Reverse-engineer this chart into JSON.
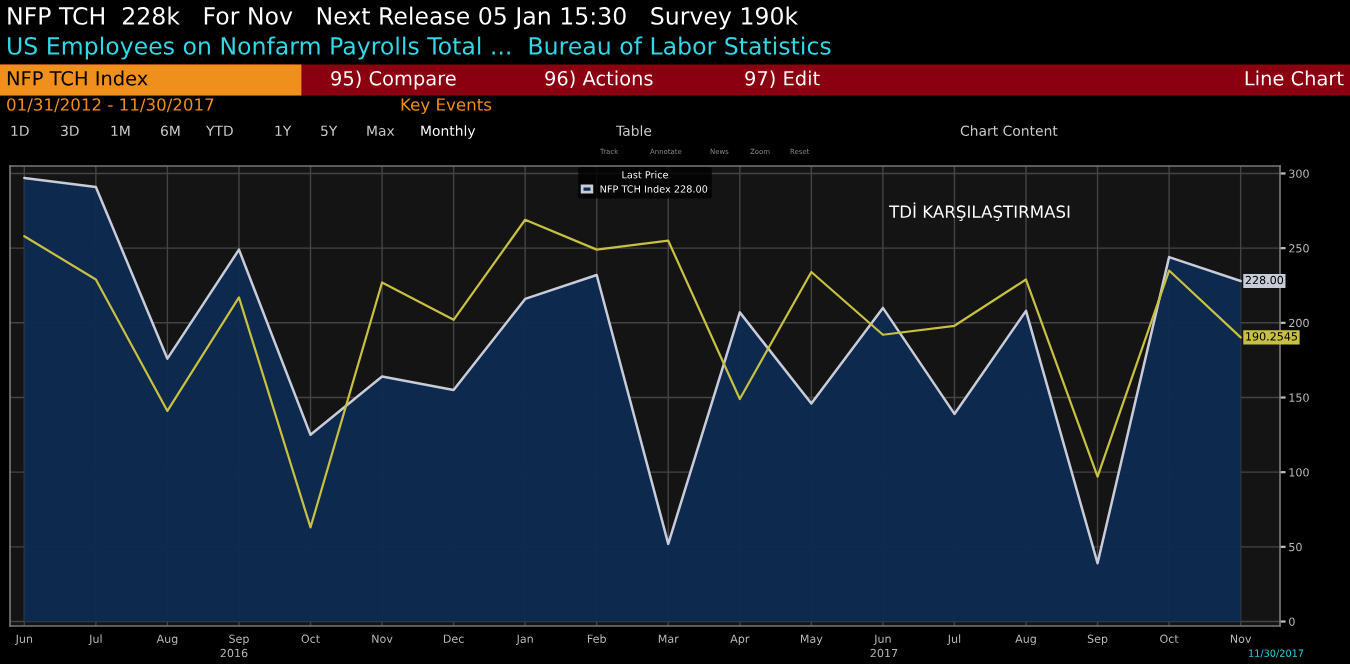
{
  "chart_data": {
    "type": "area",
    "title": "NFP TCH  228k   For Nov   Next Release 05 Jan 15:30   Survey 190k",
    "subtitle": "US Employees on Nonfarm Payrolls Total ...  Bureau of Labor Statistics",
    "legend_title": "Last Price",
    "categories": [
      "Jun",
      "Jul",
      "Aug",
      "Sep",
      "Oct",
      "Nov",
      "Dec",
      "Jan",
      "Feb",
      "Mar",
      "Apr",
      "May",
      "Jun",
      "Jul",
      "Aug",
      "Sep",
      "Oct",
      "Nov"
    ],
    "series": [
      {
        "name": "NFP TCH Index 228.00",
        "color": "#c8ccd8",
        "values": [
          297,
          291,
          176,
          249,
          125,
          164,
          155,
          216,
          232,
          52,
          207,
          146,
          210,
          139,
          208,
          39,
          244,
          228
        ],
        "value_labels": [
          null,
          null,
          null,
          null,
          null,
          null,
          null,
          null,
          null,
          null,
          null,
          null,
          null,
          null,
          null,
          null,
          null,
          "228.00"
        ]
      },
      {
        "type": "line",
        "color": "#c8c040",
        "values": [
          258,
          229,
          141,
          217,
          63,
          227,
          202,
          269,
          249,
          255,
          149,
          234,
          192,
          198,
          229,
          97,
          235,
          190.2545
        ],
        "value_labels": [
          null,
          null,
          null,
          null,
          null,
          null,
          null,
          null,
          null,
          null,
          null,
          null,
          null,
          null,
          null,
          null,
          null,
          "190.2545"
        ]
      }
    ],
    "ylim": [
      -3,
      305
    ],
    "yticks": [
      0,
      50,
      100,
      150,
      200,
      250,
      300
    ],
    "grid": true,
    "legend": "top",
    "annotations": [
      "NFP TCH Index",
      "95) Compare",
      "96) Actions",
      "97) Edit",
      "Line Chart",
      "01/31/2012 - 11/30/2017",
      "Key Events",
      "1D",
      "3D",
      "1M",
      "6M",
      "YTD",
      "1Y",
      "5Y",
      "Max",
      "Monthly",
      "Table",
      "Chart Content",
      "Track",
      "Annotate",
      "News",
      "Zoom",
      "Reset",
      "TDİ KARŞILAŞTIRMASI",
      "2016",
      "2017",
      "11/30/2017"
    ]
  }
}
